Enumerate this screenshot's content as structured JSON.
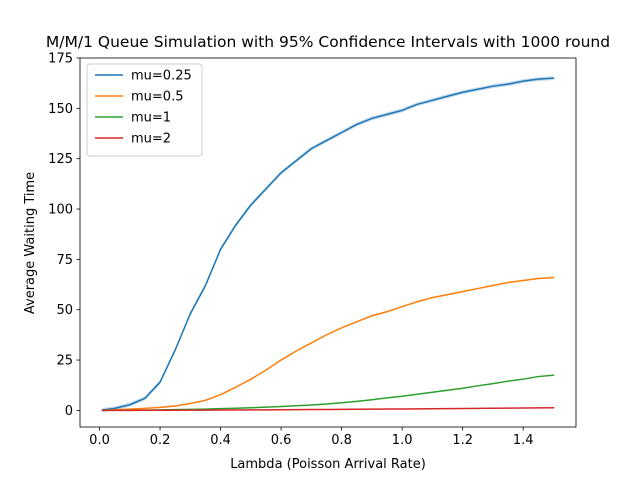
{
  "chart_data": {
    "type": "line",
    "title": "M/M/1 Queue Simulation with 95% Confidence Intervals with 1000 round",
    "xlabel": "Lambda (Poisson Arrival Rate)",
    "ylabel": "Average Waiting Time",
    "xlim": [
      -0.0645,
      1.5745
    ],
    "ylim": [
      -8.25,
      175
    ],
    "xticks": [
      0.0,
      0.2,
      0.4,
      0.6,
      0.8,
      1.0,
      1.2,
      1.4
    ],
    "xtick_labels": [
      "0.0",
      "0.2",
      "0.4",
      "0.6",
      "0.8",
      "1.0",
      "1.2",
      "1.4"
    ],
    "yticks": [
      0,
      25,
      50,
      75,
      100,
      125,
      150,
      175
    ],
    "ytick_labels": [
      "0",
      "25",
      "50",
      "75",
      "100",
      "125",
      "150",
      "175"
    ],
    "grid": false,
    "legend_position": "top-left",
    "confidence_band": "95% confidence interval shaded around each line",
    "x": [
      0.01,
      0.05,
      0.1,
      0.15,
      0.2,
      0.25,
      0.3,
      0.35,
      0.4,
      0.45,
      0.5,
      0.55,
      0.6,
      0.65,
      0.7,
      0.75,
      0.8,
      0.85,
      0.9,
      0.95,
      1.0,
      1.05,
      1.1,
      1.15,
      1.2,
      1.25,
      1.3,
      1.35,
      1.4,
      1.45,
      1.5
    ],
    "series": [
      {
        "name": "mu=0.25",
        "color": "#1f77b4",
        "values": [
          0.2,
          1.0,
          2.8,
          6.0,
          14.0,
          30.0,
          48.0,
          62.0,
          80.0,
          92.0,
          102.0,
          110.0,
          118.0,
          124.0,
          130.0,
          134.0,
          138.0,
          142.0,
          145.0,
          147.0,
          149.0,
          152.0,
          154.0,
          156.0,
          158.0,
          159.5,
          161.0,
          162.0,
          163.5,
          164.5,
          165.0
        ]
      },
      {
        "name": "mu=0.5",
        "color": "#ff7f0e",
        "values": [
          0.0,
          0.3,
          0.6,
          1.0,
          1.5,
          2.2,
          3.4,
          5.0,
          7.8,
          11.5,
          15.5,
          20.0,
          25.0,
          29.5,
          33.5,
          37.5,
          41.0,
          44.0,
          47.0,
          49.0,
          51.5,
          54.0,
          56.0,
          57.5,
          59.0,
          60.5,
          62.0,
          63.5,
          64.5,
          65.5,
          66.0
        ]
      },
      {
        "name": "mu=1",
        "color": "#2ca02c",
        "values": [
          0.0,
          0.05,
          0.1,
          0.15,
          0.25,
          0.35,
          0.5,
          0.65,
          0.85,
          1.05,
          1.3,
          1.6,
          1.9,
          2.3,
          2.7,
          3.2,
          3.8,
          4.5,
          5.3,
          6.2,
          7.0,
          8.0,
          9.0,
          10.0,
          11.0,
          12.2,
          13.3,
          14.5,
          15.5,
          16.8,
          17.5
        ]
      },
      {
        "name": "mu=2",
        "color": "#d62728",
        "values": [
          0.0,
          0.02,
          0.03,
          0.05,
          0.07,
          0.09,
          0.11,
          0.14,
          0.17,
          0.2,
          0.24,
          0.28,
          0.32,
          0.36,
          0.41,
          0.46,
          0.51,
          0.56,
          0.61,
          0.66,
          0.71,
          0.77,
          0.83,
          0.89,
          0.95,
          1.01,
          1.07,
          1.14,
          1.2,
          1.27,
          1.33
        ]
      }
    ]
  }
}
